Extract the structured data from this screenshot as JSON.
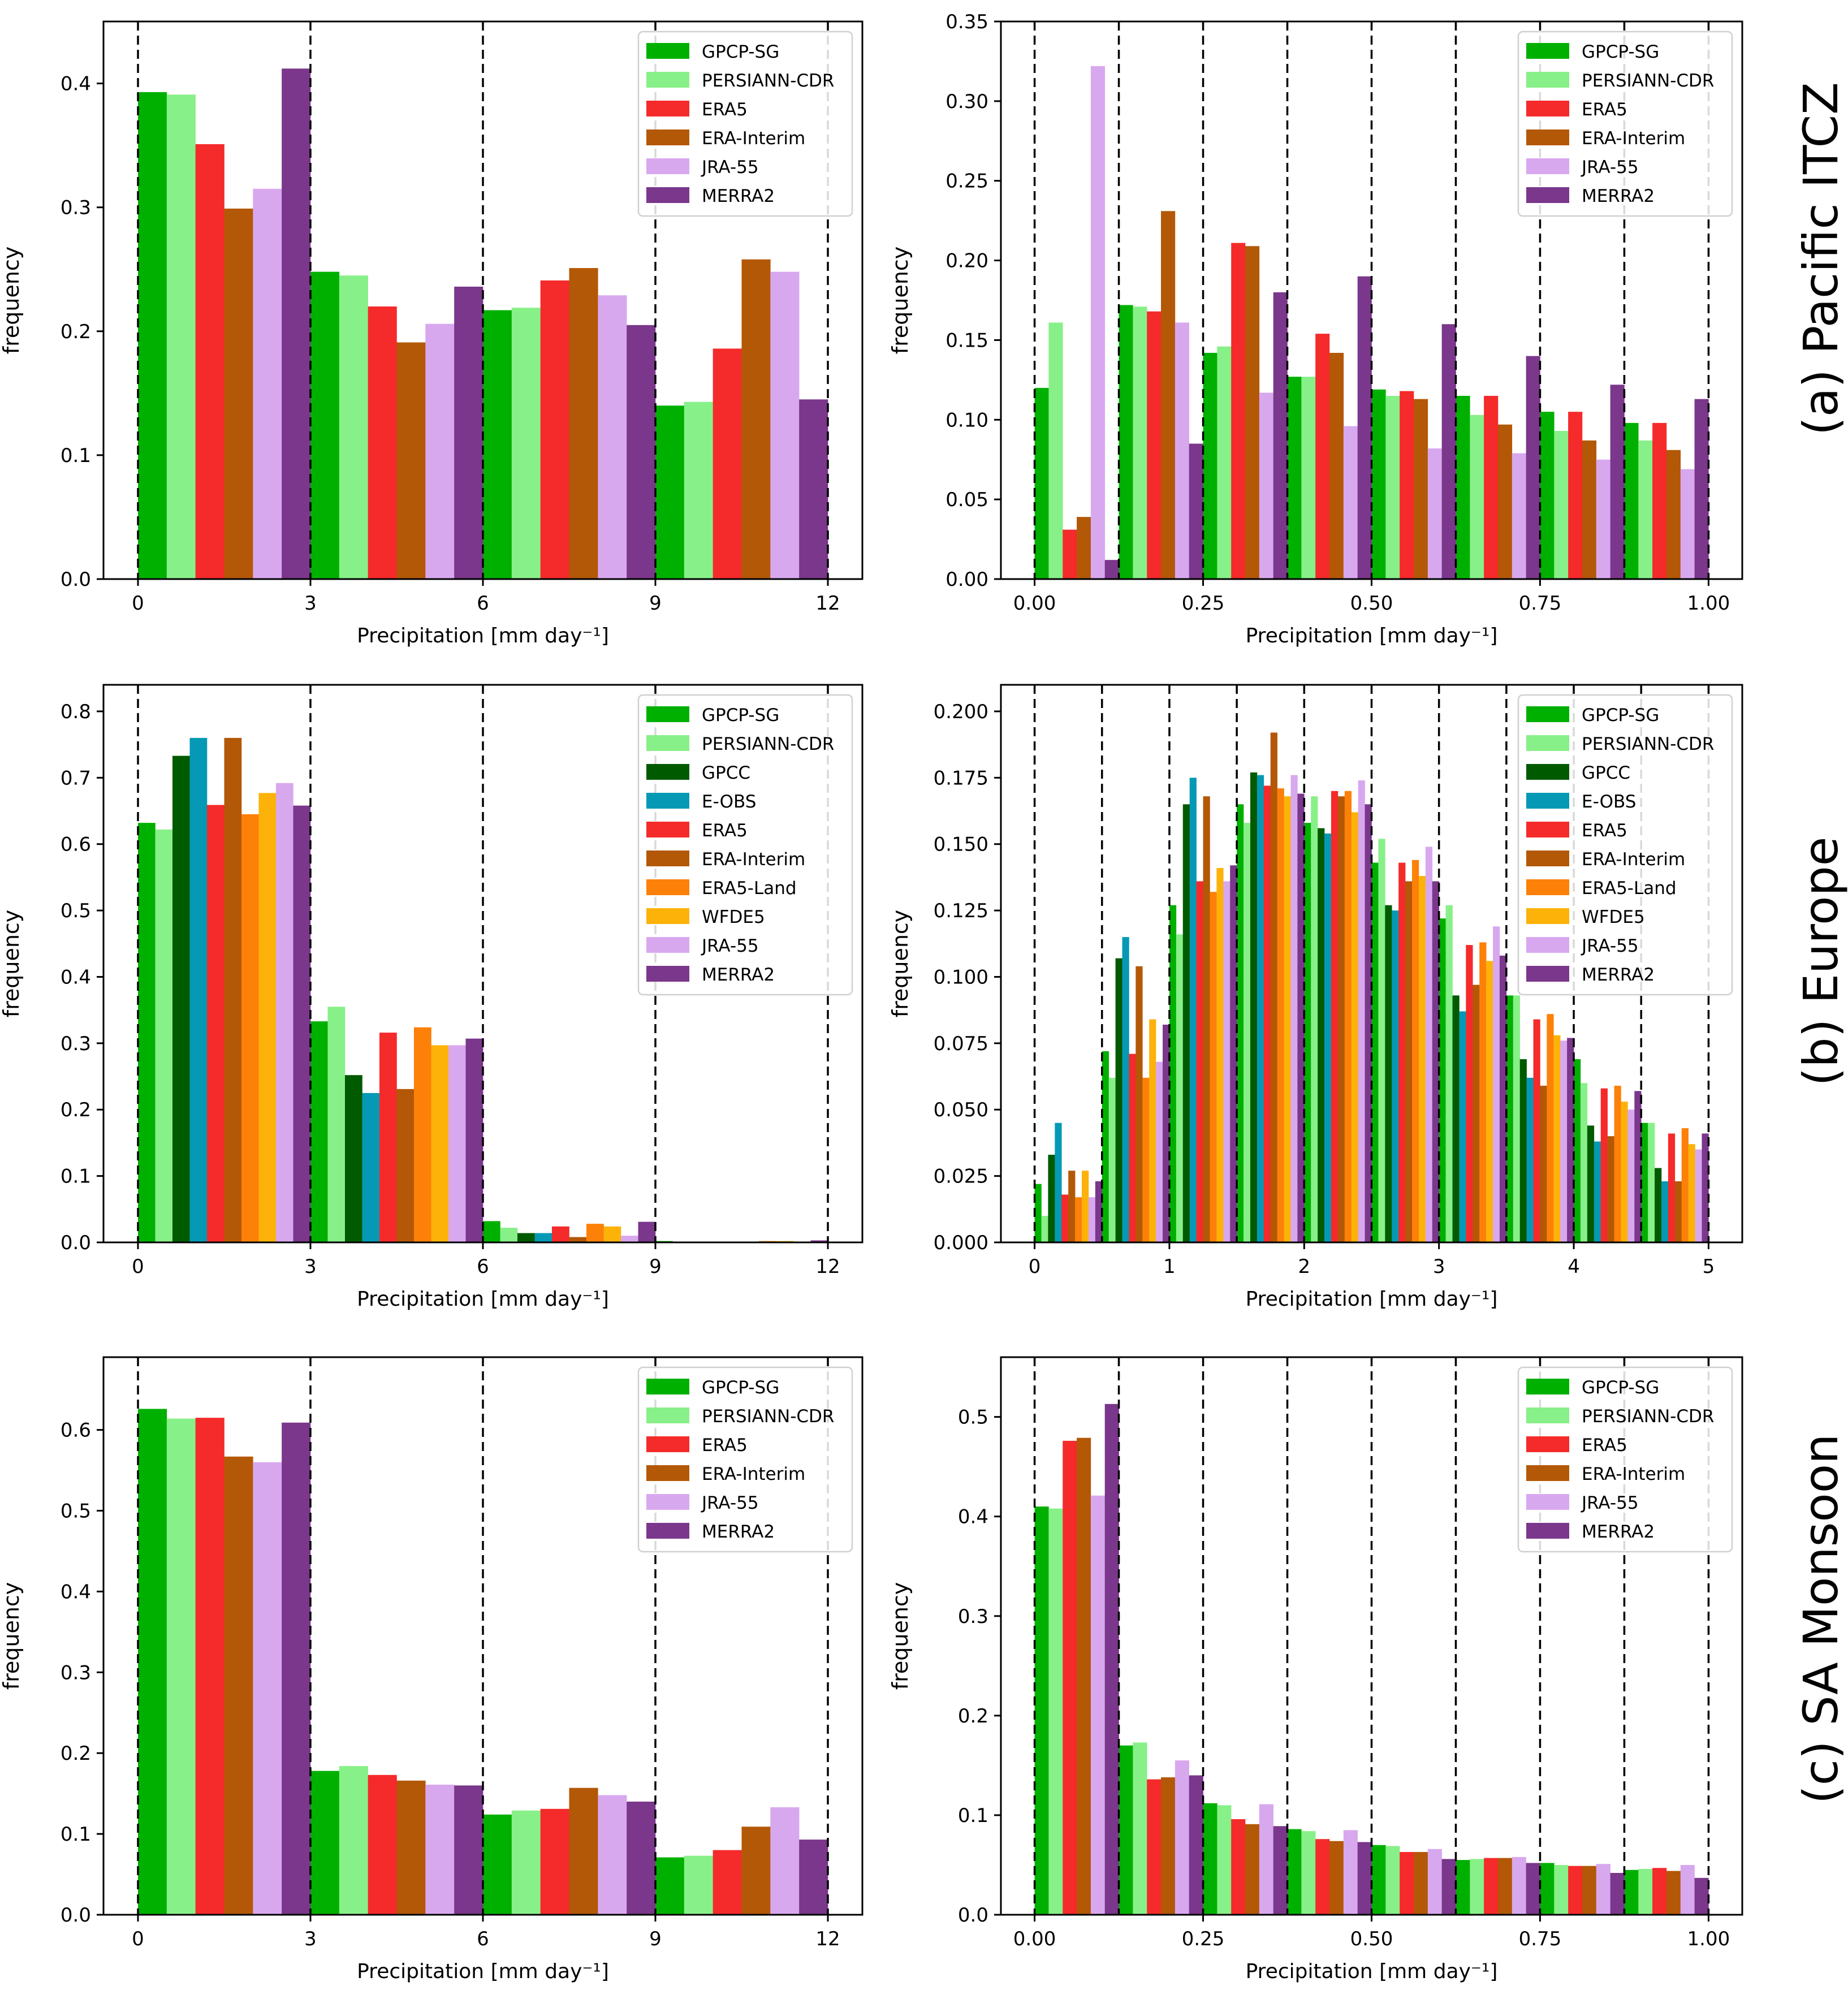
{
  "colors": {
    "GPCP-SG": "#00b000",
    "PERSIANN-CDR": "#88f088",
    "GPCC": "#005a00",
    "E-OBS": "#0599b5",
    "ERA5": "#f52a2a",
    "ERA-Interim": "#b35806",
    "ERA5-Land": "#fd8008",
    "WFDE5": "#fdb20a",
    "JRA-55": "#d8a8ef",
    "MERRA2": "#7a378b"
  },
  "row_labels": [
    "(a) Pacific ITCZ",
    "(b) Europe",
    "(c) SA Monsoon"
  ],
  "chart_data": [
    {
      "type": "bar",
      "ylabel": "frequency",
      "xlabel": "Precipitation [mm day⁻¹]",
      "xlim": [
        -0.6,
        12.6
      ],
      "ylim": [
        0,
        0.45
      ],
      "xticks": [
        "0",
        "3",
        "6",
        "9",
        "12"
      ],
      "xtick_values": [
        0,
        3,
        6,
        9,
        12
      ],
      "yticks": [
        "0.0",
        "0.1",
        "0.2",
        "0.3",
        "0.4"
      ],
      "ytick_values": [
        0,
        0.1,
        0.2,
        0.3,
        0.4
      ],
      "bin_edges": [
        0,
        3,
        6,
        9,
        12
      ],
      "vlines": [
        0,
        3,
        6,
        9,
        12
      ],
      "legend_position": "top-right",
      "series": [
        {
          "name": "GPCP-SG",
          "values": [
            0.393,
            0.248,
            0.217,
            0.14
          ]
        },
        {
          "name": "PERSIANN-CDR",
          "values": [
            0.391,
            0.245,
            0.219,
            0.143
          ]
        },
        {
          "name": "ERA5",
          "values": [
            0.351,
            0.22,
            0.241,
            0.186
          ]
        },
        {
          "name": "ERA-Interim",
          "values": [
            0.299,
            0.191,
            0.251,
            0.258
          ]
        },
        {
          "name": "JRA-55",
          "values": [
            0.315,
            0.206,
            0.229,
            0.248
          ]
        },
        {
          "name": "MERRA2",
          "values": [
            0.412,
            0.236,
            0.205,
            0.145
          ]
        }
      ]
    },
    {
      "type": "bar",
      "ylabel": "frequency",
      "xlabel": "Precipitation [mm day⁻¹]",
      "xlim": [
        -0.05,
        1.05
      ],
      "ylim": [
        0,
        0.35
      ],
      "xticks": [
        "0.00",
        "0.25",
        "0.50",
        "0.75",
        "1.00"
      ],
      "xtick_values": [
        0,
        0.25,
        0.5,
        0.75,
        1.0
      ],
      "yticks": [
        "0.00",
        "0.05",
        "0.10",
        "0.15",
        "0.20",
        "0.25",
        "0.30",
        "0.35"
      ],
      "ytick_values": [
        0,
        0.05,
        0.1,
        0.15,
        0.2,
        0.25,
        0.3,
        0.35
      ],
      "bin_edges": [
        0,
        0.125,
        0.25,
        0.375,
        0.5,
        0.625,
        0.75,
        0.875,
        1.0
      ],
      "vlines": [
        0,
        0.125,
        0.25,
        0.375,
        0.5,
        0.625,
        0.75,
        0.875,
        1.0
      ],
      "legend_position": "top-right",
      "series": [
        {
          "name": "GPCP-SG",
          "values": [
            0.12,
            0.172,
            0.142,
            0.127,
            0.119,
            0.115,
            0.105,
            0.098
          ]
        },
        {
          "name": "PERSIANN-CDR",
          "values": [
            0.161,
            0.171,
            0.146,
            0.127,
            0.115,
            0.103,
            0.093,
            0.087
          ]
        },
        {
          "name": "ERA5",
          "values": [
            0.031,
            0.168,
            0.211,
            0.154,
            0.118,
            0.115,
            0.105,
            0.098
          ]
        },
        {
          "name": "ERA-Interim",
          "values": [
            0.039,
            0.231,
            0.209,
            0.142,
            0.113,
            0.097,
            0.087,
            0.081
          ]
        },
        {
          "name": "JRA-55",
          "values": [
            0.322,
            0.161,
            0.117,
            0.096,
            0.082,
            0.079,
            0.075,
            0.069
          ]
        },
        {
          "name": "MERRA2",
          "values": [
            0.012,
            0.085,
            0.18,
            0.19,
            0.16,
            0.14,
            0.122,
            0.113
          ]
        }
      ]
    },
    {
      "type": "bar",
      "ylabel": "frequency",
      "xlabel": "Precipitation [mm day⁻¹]",
      "xlim": [
        -0.6,
        12.6
      ],
      "ylim": [
        0,
        0.84
      ],
      "xticks": [
        "0",
        "3",
        "6",
        "9",
        "12"
      ],
      "xtick_values": [
        0,
        3,
        6,
        9,
        12
      ],
      "yticks": [
        "0.0",
        "0.1",
        "0.2",
        "0.3",
        "0.4",
        "0.5",
        "0.6",
        "0.7",
        "0.8"
      ],
      "ytick_values": [
        0,
        0.1,
        0.2,
        0.3,
        0.4,
        0.5,
        0.6,
        0.7,
        0.8
      ],
      "bin_edges": [
        0,
        3,
        6,
        9,
        12
      ],
      "vlines": [
        0,
        3,
        6,
        9,
        12
      ],
      "legend_position": "top-right",
      "series": [
        {
          "name": "GPCP-SG",
          "values": [
            0.632,
            0.333,
            0.032,
            0.002
          ]
        },
        {
          "name": "PERSIANN-CDR",
          "values": [
            0.622,
            0.355,
            0.022,
            0.001
          ]
        },
        {
          "name": "GPCC",
          "values": [
            0.733,
            0.252,
            0.014,
            0.001
          ]
        },
        {
          "name": "E-OBS",
          "values": [
            0.76,
            0.225,
            0.014,
            0.001
          ]
        },
        {
          "name": "ERA5",
          "values": [
            0.659,
            0.316,
            0.024,
            0.001
          ]
        },
        {
          "name": "ERA-Interim",
          "values": [
            0.76,
            0.231,
            0.008,
            0.001
          ]
        },
        {
          "name": "ERA5-Land",
          "values": [
            0.645,
            0.324,
            0.028,
            0.002
          ]
        },
        {
          "name": "WFDE5",
          "values": [
            0.677,
            0.297,
            0.024,
            0.002
          ]
        },
        {
          "name": "JRA-55",
          "values": [
            0.692,
            0.297,
            0.01,
            0.001
          ]
        },
        {
          "name": "MERRA2",
          "values": [
            0.658,
            0.307,
            0.031,
            0.003
          ]
        }
      ]
    },
    {
      "type": "bar",
      "ylabel": "frequency",
      "xlabel": "Precipitation [mm day⁻¹]",
      "xlim": [
        -0.25,
        5.25
      ],
      "ylim": [
        0,
        0.21
      ],
      "xticks": [
        "0",
        "1",
        "2",
        "3",
        "4",
        "5"
      ],
      "xtick_values": [
        0,
        1,
        2,
        3,
        4,
        5
      ],
      "yticks": [
        "0.000",
        "0.025",
        "0.050",
        "0.075",
        "0.100",
        "0.125",
        "0.150",
        "0.175",
        "0.200"
      ],
      "ytick_values": [
        0,
        0.025,
        0.05,
        0.075,
        0.1,
        0.125,
        0.15,
        0.175,
        0.2
      ],
      "bin_edges": [
        0,
        0.5,
        1.0,
        1.5,
        2.0,
        2.5,
        3.0,
        3.5,
        4.0,
        4.5,
        5.0
      ],
      "vlines": [
        0,
        0.5,
        1.0,
        1.5,
        2.0,
        2.5,
        3.0,
        3.5,
        4.0,
        4.5,
        5.0
      ],
      "legend_position": "top-right",
      "series": [
        {
          "name": "GPCP-SG",
          "values": [
            0.022,
            0.072,
            0.127,
            0.165,
            0.158,
            0.143,
            0.122,
            0.093,
            0.069,
            0.045
          ]
        },
        {
          "name": "PERSIANN-CDR",
          "values": [
            0.01,
            0.062,
            0.116,
            0.158,
            0.168,
            0.152,
            0.127,
            0.093,
            0.06,
            0.045
          ]
        },
        {
          "name": "GPCC",
          "values": [
            0.033,
            0.107,
            0.165,
            0.177,
            0.156,
            0.127,
            0.093,
            0.069,
            0.044,
            0.028
          ]
        },
        {
          "name": "E-OBS",
          "values": [
            0.045,
            0.115,
            0.175,
            0.176,
            0.154,
            0.125,
            0.087,
            0.062,
            0.038,
            0.023
          ]
        },
        {
          "name": "ERA5",
          "values": [
            0.018,
            0.071,
            0.136,
            0.172,
            0.17,
            0.143,
            0.112,
            0.084,
            0.058,
            0.041
          ]
        },
        {
          "name": "ERA-Interim",
          "values": [
            0.027,
            0.104,
            0.168,
            0.192,
            0.168,
            0.136,
            0.097,
            0.059,
            0.04,
            0.023
          ]
        },
        {
          "name": "ERA5-Land",
          "values": [
            0.017,
            0.062,
            0.132,
            0.171,
            0.17,
            0.144,
            0.113,
            0.086,
            0.059,
            0.043
          ]
        },
        {
          "name": "WFDE5",
          "values": [
            0.027,
            0.084,
            0.141,
            0.168,
            0.162,
            0.138,
            0.106,
            0.078,
            0.053,
            0.037
          ]
        },
        {
          "name": "JRA-55",
          "values": [
            0.017,
            0.068,
            0.136,
            0.176,
            0.174,
            0.149,
            0.119,
            0.076,
            0.05,
            0.035
          ]
        },
        {
          "name": "MERRA2",
          "values": [
            0.023,
            0.082,
            0.142,
            0.169,
            0.165,
            0.136,
            0.108,
            0.077,
            0.057,
            0.041
          ]
        }
      ]
    },
    {
      "type": "bar",
      "ylabel": "frequency",
      "xlabel": "Precipitation [mm day⁻¹]",
      "xlim": [
        -0.6,
        12.6
      ],
      "ylim": [
        0,
        0.69
      ],
      "xticks": [
        "0",
        "3",
        "6",
        "9",
        "12"
      ],
      "xtick_values": [
        0,
        3,
        6,
        9,
        12
      ],
      "yticks": [
        "0.0",
        "0.1",
        "0.2",
        "0.3",
        "0.4",
        "0.5",
        "0.6"
      ],
      "ytick_values": [
        0,
        0.1,
        0.2,
        0.3,
        0.4,
        0.5,
        0.6
      ],
      "bin_edges": [
        0,
        3,
        6,
        9,
        12
      ],
      "vlines": [
        0,
        3,
        6,
        9,
        12
      ],
      "legend_position": "top-right",
      "series": [
        {
          "name": "GPCP-SG",
          "values": [
            0.626,
            0.178,
            0.124,
            0.071
          ]
        },
        {
          "name": "PERSIANN-CDR",
          "values": [
            0.614,
            0.184,
            0.129,
            0.073
          ]
        },
        {
          "name": "ERA5",
          "values": [
            0.615,
            0.173,
            0.131,
            0.08
          ]
        },
        {
          "name": "ERA-Interim",
          "values": [
            0.567,
            0.166,
            0.157,
            0.109
          ]
        },
        {
          "name": "JRA-55",
          "values": [
            0.56,
            0.161,
            0.148,
            0.133
          ]
        },
        {
          "name": "MERRA2",
          "values": [
            0.609,
            0.16,
            0.14,
            0.093
          ]
        }
      ]
    },
    {
      "type": "bar",
      "ylabel": "frequency",
      "xlabel": "Precipitation [mm day⁻¹]",
      "xlim": [
        -0.05,
        1.05
      ],
      "ylim": [
        0,
        0.56
      ],
      "xticks": [
        "0.00",
        "0.25",
        "0.50",
        "0.75",
        "1.00"
      ],
      "xtick_values": [
        0,
        0.25,
        0.5,
        0.75,
        1.0
      ],
      "yticks": [
        "0.0",
        "0.1",
        "0.2",
        "0.3",
        "0.4",
        "0.5"
      ],
      "ytick_values": [
        0,
        0.1,
        0.2,
        0.3,
        0.4,
        0.5
      ],
      "bin_edges": [
        0,
        0.125,
        0.25,
        0.375,
        0.5,
        0.625,
        0.75,
        0.875,
        1.0
      ],
      "vlines": [
        0,
        0.125,
        0.25,
        0.375,
        0.5,
        0.625,
        0.75,
        0.875,
        1.0
      ],
      "legend_position": "top-right",
      "series": [
        {
          "name": "GPCP-SG",
          "values": [
            0.41,
            0.17,
            0.112,
            0.086,
            0.07,
            0.055,
            0.052,
            0.045
          ]
        },
        {
          "name": "PERSIANN-CDR",
          "values": [
            0.408,
            0.173,
            0.11,
            0.084,
            0.069,
            0.056,
            0.05,
            0.046
          ]
        },
        {
          "name": "ERA5",
          "values": [
            0.476,
            0.136,
            0.096,
            0.076,
            0.063,
            0.057,
            0.049,
            0.047
          ]
        },
        {
          "name": "ERA-Interim",
          "values": [
            0.479,
            0.138,
            0.091,
            0.074,
            0.063,
            0.057,
            0.049,
            0.044
          ]
        },
        {
          "name": "JRA-55",
          "values": [
            0.421,
            0.155,
            0.111,
            0.085,
            0.066,
            0.058,
            0.051,
            0.05
          ]
        },
        {
          "name": "MERRA2",
          "values": [
            0.513,
            0.14,
            0.089,
            0.073,
            0.056,
            0.052,
            0.042,
            0.037
          ]
        }
      ]
    }
  ]
}
